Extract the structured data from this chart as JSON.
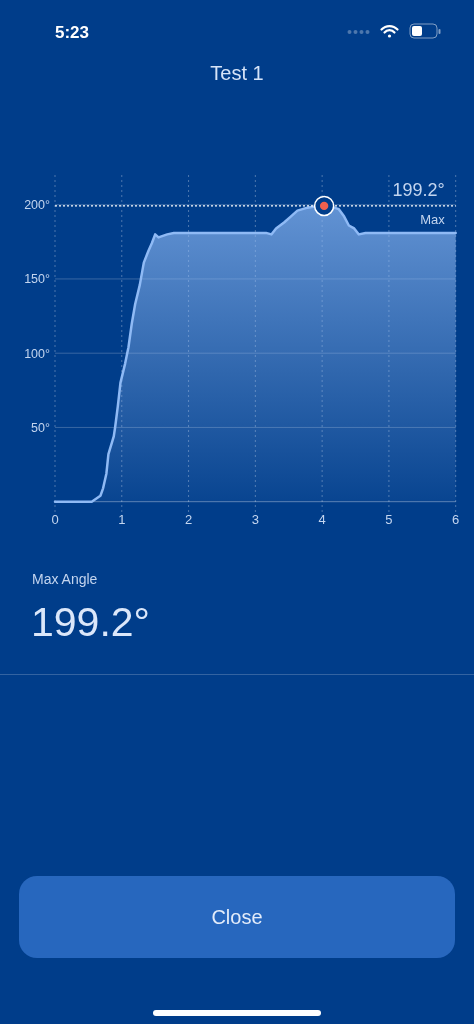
{
  "chart_data": [
    {
      "type": "area",
      "title": "Test 1",
      "xlim": [
        0,
        6
      ],
      "ylim": [
        0,
        220
      ],
      "xticks": [
        0,
        1,
        2,
        3,
        4,
        5,
        6
      ],
      "yticks": [
        {
          "value": 50,
          "label": "50°"
        },
        {
          "value": 100,
          "label": "100°"
        },
        {
          "value": 150,
          "label": "150°"
        },
        {
          "value": 200,
          "label": "200°"
        }
      ],
      "grid": true,
      "series": [
        {
          "type": "area",
          "color": "#8fbaf5",
          "x": [
            0,
            0.55,
            0.68,
            0.72,
            0.77,
            0.8,
            0.88,
            0.9,
            0.94,
            0.98,
            1.05,
            1.1,
            1.15,
            1.2,
            1.27,
            1.33,
            1.4,
            1.45,
            1.5,
            1.55,
            1.68,
            1.78,
            2.03,
            2.5,
            3.0,
            3.16,
            3.24,
            3.31,
            3.43,
            3.53,
            3.63,
            3.78,
            3.91,
            4.03,
            4.18,
            4.25,
            4.33,
            4.4,
            4.48,
            4.55,
            4.65,
            5.0,
            5.5,
            6.0
          ],
          "values": [
            0,
            0,
            4,
            9,
            19,
            32,
            44,
            50,
            64,
            80,
            93,
            104,
            120,
            133,
            146,
            161,
            169,
            174,
            180,
            178,
            180,
            181,
            181,
            181,
            181,
            181,
            180,
            184,
            188,
            192,
            196,
            198,
            199,
            199.2,
            198,
            197,
            192,
            186,
            184,
            180,
            181,
            181,
            181,
            181
          ]
        },
        {
          "type": "scatter",
          "color": "#f0604e",
          "marker": "circle",
          "x": [
            4.03
          ],
          "values": [
            199.2
          ]
        }
      ],
      "ref_lines": [
        {
          "axis": "y",
          "value": 199.2,
          "label": "Max",
          "color": "#ffffff",
          "line_style": "dotted"
        }
      ],
      "annotations": [
        "5:23",
        {
          "text": "199.2°",
          "x": 6,
          "y": 199.2
        }
      ]
    },
    {
      "type": "other",
      "title": "Max Angle",
      "annotations": [
        "199.2°",
        "Close"
      ]
    }
  ]
}
